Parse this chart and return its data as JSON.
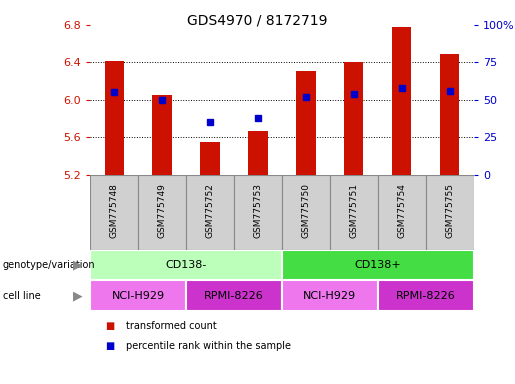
{
  "title": "GDS4970 / 8172719",
  "samples": [
    "GSM775748",
    "GSM775749",
    "GSM775752",
    "GSM775753",
    "GSM775750",
    "GSM775751",
    "GSM775754",
    "GSM775755"
  ],
  "transformed_count": [
    6.42,
    6.05,
    5.55,
    5.67,
    6.31,
    6.4,
    6.78,
    6.49
  ],
  "percentile_rank": [
    55,
    50,
    35,
    38,
    52,
    54,
    58,
    56
  ],
  "ymin": 5.2,
  "ymax": 6.8,
  "yticks_left": [
    5.2,
    5.6,
    6.0,
    6.4,
    6.8
  ],
  "yticks_right": [
    0,
    25,
    50,
    75,
    100
  ],
  "bar_color": "#cc1100",
  "dot_color": "#0000cc",
  "groups": [
    {
      "label": "CD138-",
      "start": 0,
      "end": 4,
      "color": "#bbffbb"
    },
    {
      "label": "CD138+",
      "start": 4,
      "end": 8,
      "color": "#44dd44"
    }
  ],
  "cell_lines": [
    {
      "label": "NCI-H929",
      "start": 0,
      "end": 2,
      "color": "#ee77ee"
    },
    {
      "label": "RPMI-8226",
      "start": 2,
      "end": 4,
      "color": "#cc33cc"
    },
    {
      "label": "NCI-H929",
      "start": 4,
      "end": 6,
      "color": "#ee77ee"
    },
    {
      "label": "RPMI-8226",
      "start": 6,
      "end": 8,
      "color": "#cc33cc"
    }
  ],
  "legend_items": [
    {
      "label": "transformed count",
      "color": "#cc1100"
    },
    {
      "label": "percentile rank within the sample",
      "color": "#0000cc"
    }
  ],
  "left_label_color": "#cc1100",
  "right_label_color": "#0000cc",
  "bg_color": "#ffffff",
  "sample_box_color": "#d0d0d0",
  "sample_border_color": "#888888"
}
